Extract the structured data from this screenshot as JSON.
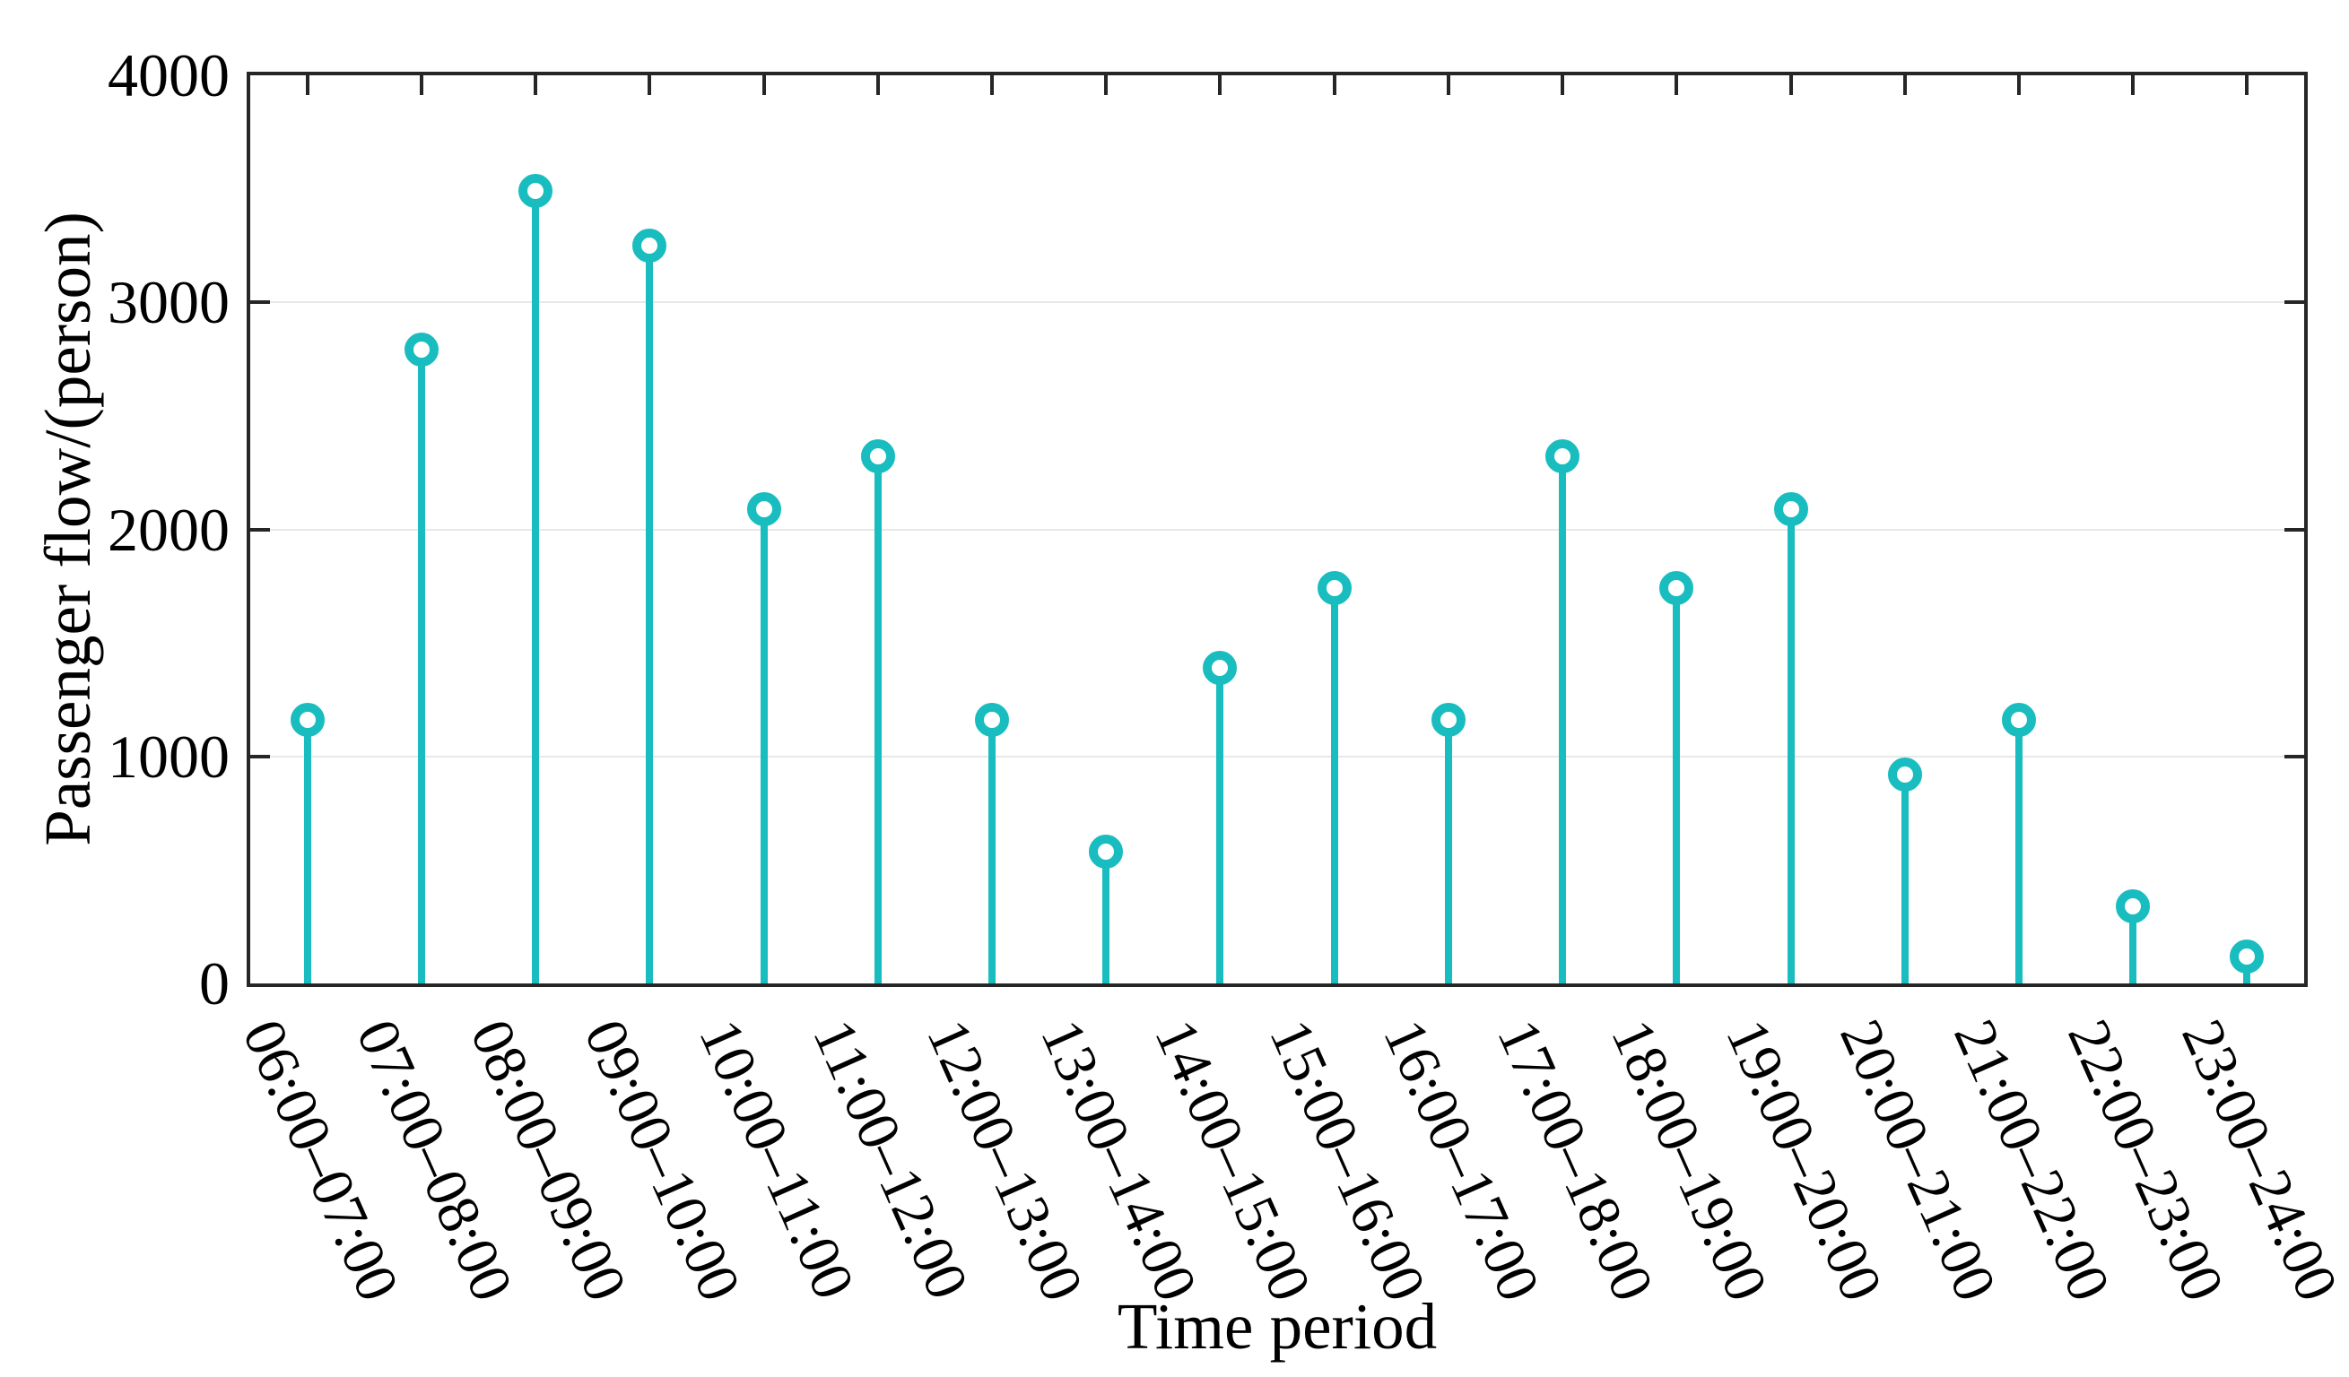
{
  "figure": {
    "background": "#ffffff"
  },
  "chart_data": {
    "type": "stem",
    "title": "",
    "xlabel": "Time period",
    "ylabel": "Passenger flow/(person)",
    "categories": [
      "06:00–07:00",
      "07:00–08:00",
      "08:00–09:00",
      "09:00–10:00",
      "10:00–11:00",
      "11:00–12:00",
      "12:00–13:00",
      "13:00–14:00",
      "14:00–15:00",
      "15:00–16:00",
      "16:00–17:00",
      "17:00–18:00",
      "18:00–19:00",
      "19:00–20:00",
      "20:00–21:00",
      "21:00–22:00",
      "22:00–23:00",
      "23:00–24:00"
    ],
    "values": [
      1160,
      2790,
      3490,
      3250,
      2090,
      2320,
      1160,
      580,
      1390,
      1740,
      1160,
      2320,
      1740,
      2090,
      920,
      1160,
      340,
      120
    ],
    "ylim": [
      0,
      4000
    ],
    "yticks": [
      0,
      1000,
      2000,
      3000,
      4000
    ],
    "ytick_labels": [
      "0",
      "1000",
      "2000",
      "3000",
      "4000"
    ],
    "xtick_rotation_deg": -66,
    "grid": "horizontal-only",
    "legend": "none",
    "marker": "open-circle",
    "colors": {
      "stem": "#19bdbf",
      "axis": "#262626",
      "grid": "#e8e8e8",
      "text": "#000000",
      "marker_fill": "#ffffff"
    }
  }
}
